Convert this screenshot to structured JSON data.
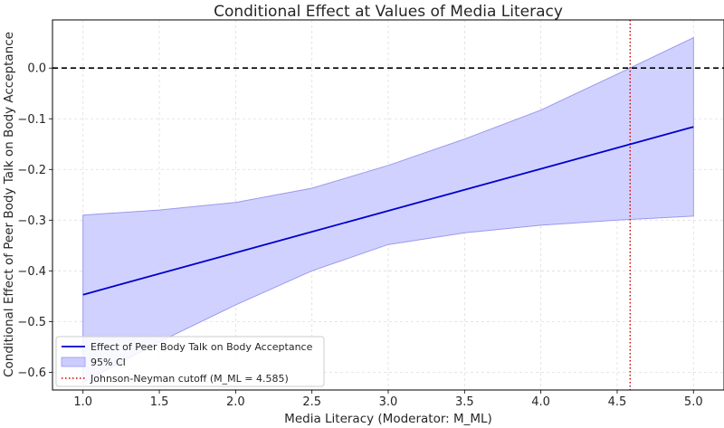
{
  "chart_data": {
    "type": "line",
    "title": "Conditional Effect at Values of Media Literacy",
    "xlabel": "Media Literacy (Moderator: M_ML)",
    "ylabel": "Conditional Effect of Peer Body Talk on Body Acceptance",
    "xlim": [
      0.8,
      5.2
    ],
    "ylim": [
      -0.635,
      0.095
    ],
    "x_ticks": [
      1.0,
      1.5,
      2.0,
      2.5,
      3.0,
      3.5,
      4.0,
      4.5,
      5.0
    ],
    "x_tick_labels": [
      "1.0",
      "1.5",
      "2.0",
      "2.5",
      "3.0",
      "3.5",
      "4.0",
      "4.5",
      "5.0"
    ],
    "y_ticks": [
      -0.6,
      -0.5,
      -0.4,
      -0.3,
      -0.2,
      -0.1,
      0.0
    ],
    "y_tick_labels": [
      "−0.6",
      "−0.5",
      "−0.4",
      "−0.3",
      "−0.2",
      "−0.1",
      "0.0"
    ],
    "grid": true,
    "legend_position": "lower-left",
    "series": [
      {
        "name": "Effect of Peer Body Talk on Body Acceptance",
        "color": "#0000cc",
        "x": [
          1.0,
          5.0
        ],
        "y": [
          -0.447,
          -0.116
        ]
      }
    ],
    "ci_band": {
      "name": "95% CI",
      "color": "#ccccff",
      "edge_color": "#9999ee",
      "x": [
        1.0,
        1.5,
        2.0,
        2.5,
        3.0,
        3.5,
        4.0,
        4.5,
        5.0
      ],
      "upper": [
        -0.29,
        -0.28,
        -0.265,
        -0.237,
        -0.192,
        -0.14,
        -0.083,
        -0.012,
        0.06
      ],
      "lower": [
        -0.62,
        -0.54,
        -0.467,
        -0.4,
        -0.348,
        -0.325,
        -0.31,
        -0.3,
        -0.292
      ]
    },
    "reference_lines": [
      {
        "orientation": "horizontal",
        "value": 0.0,
        "style": "dashed",
        "color": "#000000"
      },
      {
        "orientation": "vertical",
        "value": 4.585,
        "style": "dotted",
        "color": "#cc0000",
        "name": "Johnson-Neyman cutoff (M_ML = 4.585)"
      }
    ]
  }
}
